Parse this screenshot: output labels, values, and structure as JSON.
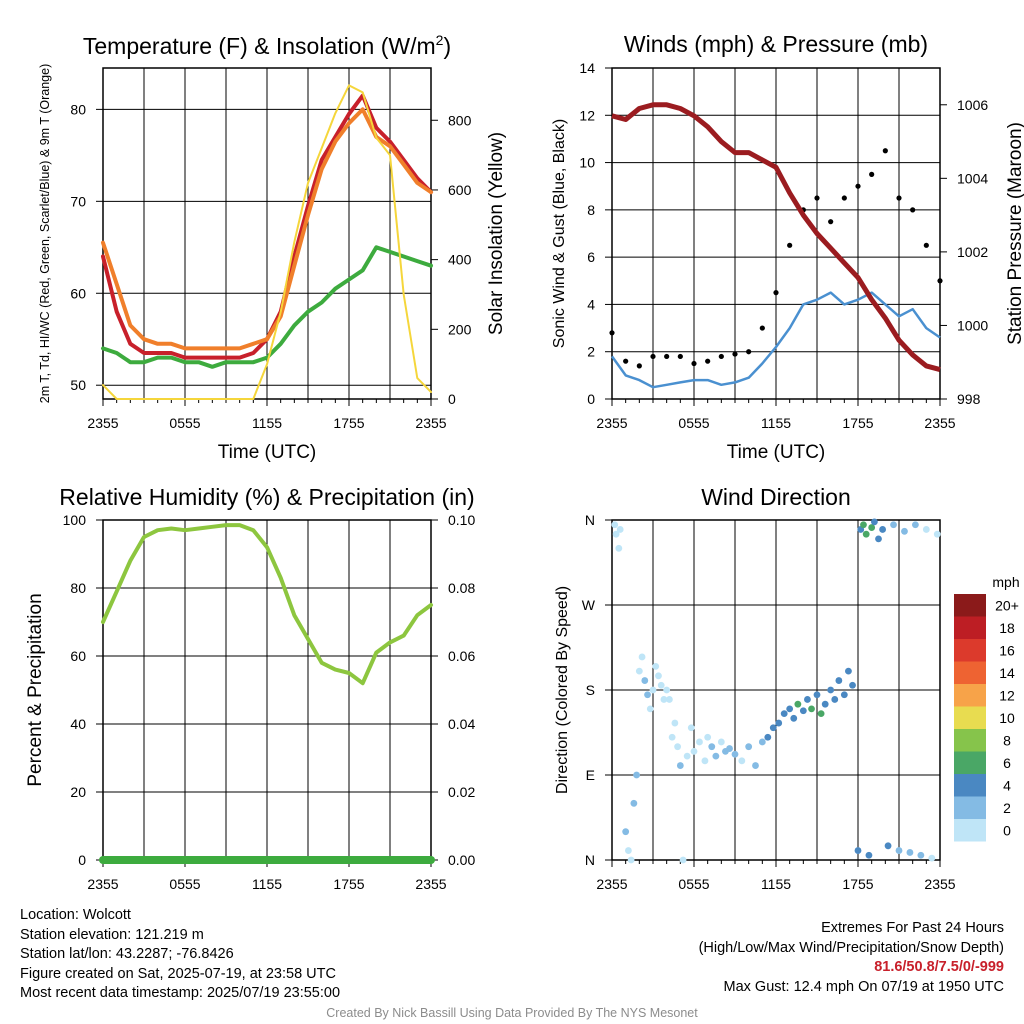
{
  "chart_data": [
    {
      "type": "line",
      "title": "Temperature (F) & Insolation (W/m2)",
      "xlabel": "Time (UTC)",
      "ylabel_left": "2m T, Td, HI/WC (Red, Green, Scarlet/Blue) & 9m T (Orange)",
      "ylabel_right": "Solar Insolation (Yellow)",
      "x_ticks": [
        "2355",
        "0555",
        "1155",
        "1755",
        "2355"
      ],
      "ylim": [
        48.5,
        84.5
      ],
      "y_ticks": [
        50,
        60,
        70,
        80
      ],
      "y2lim": [
        0,
        950
      ],
      "y2_ticks": [
        0,
        200,
        400,
        600,
        800
      ],
      "x_hours_since_start": [
        0,
        1,
        2,
        3,
        4,
        5,
        6,
        7,
        8,
        9,
        10,
        11,
        12,
        13,
        14,
        15,
        16,
        17,
        18,
        19,
        20,
        21,
        22,
        23,
        24
      ],
      "series": [
        {
          "name": "2m T",
          "color": "#c8202b",
          "axis": "left",
          "values": [
            64.0,
            58.0,
            54.5,
            53.5,
            53.5,
            53.5,
            53.0,
            53.0,
            53.0,
            53.0,
            53.0,
            53.5,
            55.0,
            58.0,
            64.0,
            69.5,
            74.5,
            77.0,
            79.5,
            81.5,
            78.0,
            76.5,
            74.5,
            72.5,
            71.0
          ]
        },
        {
          "name": "9m T",
          "color": "#f07f2b",
          "axis": "left",
          "values": [
            65.5,
            61.0,
            56.5,
            55.0,
            54.5,
            54.5,
            54.0,
            54.0,
            54.0,
            54.0,
            54.0,
            54.5,
            55.0,
            57.5,
            63.0,
            68.5,
            73.5,
            76.5,
            78.5,
            80.0,
            77.0,
            76.0,
            74.0,
            72.0,
            71.0
          ]
        },
        {
          "name": "Td",
          "color": "#3dab3e",
          "axis": "left",
          "values": [
            54.0,
            53.5,
            52.5,
            52.5,
            53.0,
            53.0,
            52.5,
            52.5,
            52.0,
            52.5,
            52.5,
            52.5,
            53.0,
            54.5,
            56.5,
            58.0,
            59.0,
            60.5,
            61.5,
            62.5,
            65.0,
            64.5,
            64.0,
            63.5,
            63.0
          ]
        },
        {
          "name": "Solar Insolation",
          "color": "#f5d63b",
          "axis": "right",
          "values": [
            40,
            0,
            0,
            0,
            0,
            0,
            0,
            0,
            0,
            0,
            0,
            0,
            100,
            250,
            450,
            620,
            720,
            820,
            900,
            880,
            750,
            700,
            300,
            60,
            20
          ]
        }
      ]
    },
    {
      "type": "scatter",
      "title": "Winds (mph) & Pressure (mb)",
      "xlabel": "Time (UTC)",
      "ylabel_left": "Sonic Wind & Gust (Blue, Black)",
      "ylabel_right": "Station Pressure (Maroon)",
      "x_ticks": [
        "2355",
        "0555",
        "1155",
        "1755",
        "2355"
      ],
      "ylim": [
        0,
        14
      ],
      "y_ticks": [
        0,
        2,
        4,
        6,
        8,
        10,
        12,
        14
      ],
      "y2lim": [
        998,
        1007
      ],
      "y2_ticks": [
        998,
        1000,
        1002,
        1004,
        1006
      ],
      "x_hours_since_start": [
        0,
        1,
        2,
        3,
        4,
        5,
        6,
        7,
        8,
        9,
        10,
        11,
        12,
        13,
        14,
        15,
        16,
        17,
        18,
        19,
        20,
        21,
        22,
        23,
        24
      ],
      "series": [
        {
          "name": "Sonic Wind",
          "color": "#4a90d0",
          "axis": "left",
          "style": "line",
          "values": [
            1.8,
            1.0,
            0.8,
            0.5,
            0.6,
            0.7,
            0.8,
            0.8,
            0.6,
            0.7,
            0.9,
            1.5,
            2.2,
            3.0,
            4.0,
            4.2,
            4.5,
            4.0,
            4.2,
            4.5,
            4.0,
            3.5,
            3.8,
            3.0,
            2.6
          ]
        },
        {
          "name": "Gust",
          "color": "#000000",
          "axis": "left",
          "style": "points",
          "values": [
            2.8,
            1.6,
            1.4,
            1.8,
            1.8,
            1.8,
            1.5,
            1.6,
            1.8,
            1.9,
            2.0,
            3.0,
            4.5,
            6.5,
            8.0,
            8.5,
            7.5,
            8.5,
            9.0,
            9.5,
            10.5,
            8.5,
            8.0,
            6.5,
            5.0
          ]
        },
        {
          "name": "Station Pressure",
          "color": "#9b1c20",
          "axis": "right",
          "style": "line",
          "values": [
            1005.7,
            1005.6,
            1005.9,
            1006.0,
            1006.0,
            1005.9,
            1005.7,
            1005.4,
            1005.0,
            1004.7,
            1004.7,
            1004.5,
            1004.3,
            1003.6,
            1003.0,
            1002.5,
            1002.1,
            1001.7,
            1001.3,
            1000.7,
            1000.2,
            999.6,
            999.2,
            998.9,
            998.8
          ]
        }
      ]
    },
    {
      "type": "line",
      "title": "Relative Humidity (%) & Precipitation (in)",
      "xlabel": "",
      "ylabel_left": "Percent & Precipitation",
      "x_ticks": [
        "2355",
        "0555",
        "1155",
        "1755",
        "2355"
      ],
      "ylim": [
        0,
        100
      ],
      "y_ticks": [
        0,
        20,
        40,
        60,
        80,
        100
      ],
      "y2lim": [
        0,
        0.1
      ],
      "y2_ticks": [
        "0.00",
        "0.02",
        "0.04",
        "0.06",
        "0.08",
        "0.10"
      ],
      "x_hours_since_start": [
        0,
        1,
        2,
        3,
        4,
        5,
        6,
        7,
        8,
        9,
        10,
        11,
        12,
        13,
        14,
        15,
        16,
        17,
        18,
        19,
        20,
        21,
        22,
        23,
        24
      ],
      "series": [
        {
          "name": "Relative Humidity",
          "color": "#8dc63f",
          "axis": "left",
          "values": [
            70,
            79,
            88,
            95,
            97,
            97.5,
            97,
            97.5,
            98,
            98.5,
            98.5,
            97,
            92,
            83,
            72,
            65,
            58,
            56,
            55,
            52,
            61,
            64,
            66,
            72,
            75
          ]
        },
        {
          "name": "Precipitation",
          "color": "#3dab3e",
          "axis": "right",
          "values": [
            0,
            0,
            0,
            0,
            0,
            0,
            0,
            0,
            0,
            0,
            0,
            0,
            0,
            0,
            0,
            0,
            0,
            0,
            0,
            0,
            0,
            0,
            0,
            0,
            0
          ]
        }
      ]
    },
    {
      "type": "scatter",
      "title": "Wind Direction",
      "ylabel": "Direction (Colored By Speed)",
      "x_ticks": [
        "2355",
        "0555",
        "1155",
        "1755",
        "2355"
      ],
      "y_ticks": [
        "N",
        "E",
        "S",
        "W",
        "N"
      ],
      "ylim_degrees": [
        0,
        360
      ],
      "colorbar_label": "mph",
      "colorbar_levels": [
        "20+",
        "18",
        "16",
        "14",
        "12",
        "10",
        "8",
        "6",
        "4",
        "2",
        "0"
      ],
      "colorbar_colors": [
        "#8b1a1a",
        "#bd1e24",
        "#dc3a2c",
        "#ee6332",
        "#f7a349",
        "#e8dc50",
        "#86c44b",
        "#4aa766",
        "#4a88c2",
        "#84bbe4",
        "#bfe5f7"
      ],
      "points": [
        {
          "x": 0.2,
          "dir": 355,
          "mph": 1
        },
        {
          "x": 0.3,
          "dir": 345,
          "mph": 1
        },
        {
          "x": 0.5,
          "dir": 330,
          "mph": 1
        },
        {
          "x": 0.6,
          "dir": 350,
          "mph": 1
        },
        {
          "x": 1.0,
          "dir": 30,
          "mph": 2
        },
        {
          "x": 1.2,
          "dir": 10,
          "mph": 1
        },
        {
          "x": 1.4,
          "dir": 0,
          "mph": 1
        },
        {
          "x": 1.6,
          "dir": 60,
          "mph": 2
        },
        {
          "x": 1.8,
          "dir": 90,
          "mph": 3
        },
        {
          "x": 2.0,
          "dir": 200,
          "mph": 1
        },
        {
          "x": 2.2,
          "dir": 215,
          "mph": 1
        },
        {
          "x": 2.4,
          "dir": 190,
          "mph": 2
        },
        {
          "x": 2.6,
          "dir": 175,
          "mph": 3
        },
        {
          "x": 2.8,
          "dir": 160,
          "mph": 1
        },
        {
          "x": 3.0,
          "dir": 180,
          "mph": 1
        },
        {
          "x": 3.2,
          "dir": 205,
          "mph": 1
        },
        {
          "x": 3.4,
          "dir": 195,
          "mph": 1
        },
        {
          "x": 3.6,
          "dir": 185,
          "mph": 1
        },
        {
          "x": 3.8,
          "dir": 170,
          "mph": 1
        },
        {
          "x": 4.0,
          "dir": 180,
          "mph": 1
        },
        {
          "x": 4.2,
          "dir": 170,
          "mph": 1
        },
        {
          "x": 4.4,
          "dir": 130,
          "mph": 1
        },
        {
          "x": 4.6,
          "dir": 145,
          "mph": 1
        },
        {
          "x": 4.8,
          "dir": 120,
          "mph": 1
        },
        {
          "x": 5.0,
          "dir": 100,
          "mph": 2
        },
        {
          "x": 5.2,
          "dir": 0,
          "mph": 1
        },
        {
          "x": 5.5,
          "dir": 110,
          "mph": 1
        },
        {
          "x": 5.8,
          "dir": 140,
          "mph": 1
        },
        {
          "x": 6.0,
          "dir": 115,
          "mph": 1
        },
        {
          "x": 6.4,
          "dir": 125,
          "mph": 1
        },
        {
          "x": 6.8,
          "dir": 105,
          "mph": 1
        },
        {
          "x": 7.0,
          "dir": 130,
          "mph": 1
        },
        {
          "x": 7.3,
          "dir": 120,
          "mph": 2
        },
        {
          "x": 7.6,
          "dir": 110,
          "mph": 2
        },
        {
          "x": 8.0,
          "dir": 125,
          "mph": 1
        },
        {
          "x": 8.3,
          "dir": 115,
          "mph": 2
        },
        {
          "x": 8.6,
          "dir": 118,
          "mph": 2
        },
        {
          "x": 9.0,
          "dir": 112,
          "mph": 2
        },
        {
          "x": 9.5,
          "dir": 105,
          "mph": 1
        },
        {
          "x": 10.0,
          "dir": 120,
          "mph": 2
        },
        {
          "x": 10.5,
          "dir": 100,
          "mph": 2
        },
        {
          "x": 11.0,
          "dir": 125,
          "mph": 3
        },
        {
          "x": 11.4,
          "dir": 130,
          "mph": 4
        },
        {
          "x": 11.8,
          "dir": 140,
          "mph": 4
        },
        {
          "x": 12.2,
          "dir": 145,
          "mph": 5
        },
        {
          "x": 12.6,
          "dir": 155,
          "mph": 4
        },
        {
          "x": 13.0,
          "dir": 160,
          "mph": 5
        },
        {
          "x": 13.3,
          "dir": 150,
          "mph": 4
        },
        {
          "x": 13.6,
          "dir": 165,
          "mph": 6
        },
        {
          "x": 14.0,
          "dir": 158,
          "mph": 4
        },
        {
          "x": 14.3,
          "dir": 170,
          "mph": 5
        },
        {
          "x": 14.6,
          "dir": 160,
          "mph": 7
        },
        {
          "x": 15.0,
          "dir": 175,
          "mph": 5
        },
        {
          "x": 15.3,
          "dir": 155,
          "mph": 6
        },
        {
          "x": 15.6,
          "dir": 165,
          "mph": 4
        },
        {
          "x": 16.0,
          "dir": 180,
          "mph": 4
        },
        {
          "x": 16.3,
          "dir": 170,
          "mph": 5
        },
        {
          "x": 16.6,
          "dir": 190,
          "mph": 4
        },
        {
          "x": 17.0,
          "dir": 175,
          "mph": 4
        },
        {
          "x": 17.3,
          "dir": 200,
          "mph": 4
        },
        {
          "x": 17.6,
          "dir": 185,
          "mph": 5
        },
        {
          "x": 18.0,
          "dir": 10,
          "mph": 4
        },
        {
          "x": 18.2,
          "dir": 350,
          "mph": 5
        },
        {
          "x": 18.4,
          "dir": 355,
          "mph": 7
        },
        {
          "x": 18.6,
          "dir": 345,
          "mph": 6
        },
        {
          "x": 18.8,
          "dir": 5,
          "mph": 4
        },
        {
          "x": 19.0,
          "dir": 352,
          "mph": 6
        },
        {
          "x": 19.2,
          "dir": 358,
          "mph": 5
        },
        {
          "x": 19.5,
          "dir": 340,
          "mph": 4
        },
        {
          "x": 19.8,
          "dir": 350,
          "mph": 4
        },
        {
          "x": 20.2,
          "dir": 15,
          "mph": 4
        },
        {
          "x": 20.6,
          "dir": 355,
          "mph": 3
        },
        {
          "x": 21.0,
          "dir": 10,
          "mph": 3
        },
        {
          "x": 21.4,
          "dir": 348,
          "mph": 2
        },
        {
          "x": 21.8,
          "dir": 8,
          "mph": 2
        },
        {
          "x": 22.2,
          "dir": 355,
          "mph": 2
        },
        {
          "x": 22.6,
          "dir": 5,
          "mph": 2
        },
        {
          "x": 23.0,
          "dir": 350,
          "mph": 1
        },
        {
          "x": 23.4,
          "dir": 2,
          "mph": 1
        },
        {
          "x": 23.8,
          "dir": 345,
          "mph": 1
        }
      ]
    }
  ],
  "info": {
    "location": "Location: Wolcott",
    "elevation": "Station elevation: 121.219 m",
    "latlon": "Station lat/lon: 43.2287; -76.8426",
    "created": "Figure created on Sat, 2025-07-19, at 23:58 UTC",
    "recent": "Most recent data timestamp: 2025/07/19 23:55:00",
    "extremes_title": "Extremes For Past 24 Hours",
    "extremes_subtitle": "(High/Low/Max Wind/Precipitation/Snow Depth)",
    "extremes_values": "81.6/50.8/7.5/0/-999",
    "max_gust": "Max Gust: 12.4 mph On 07/19 at 1950 UTC"
  },
  "credit": "Created By Nick Bassill Using Data Provided By The NYS Mesonet"
}
